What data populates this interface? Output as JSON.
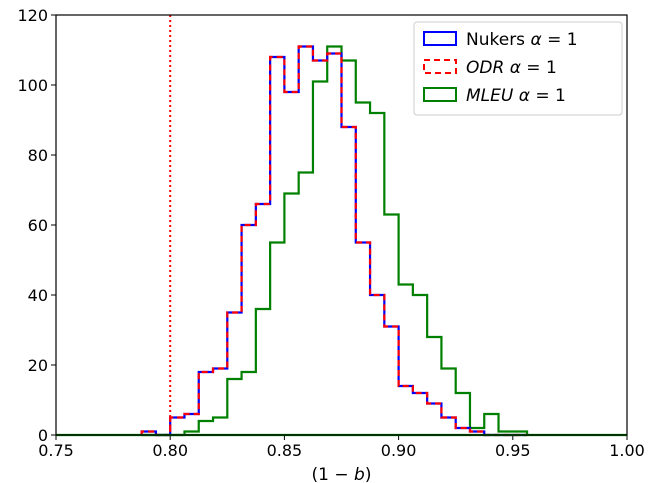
{
  "chart_data": {
    "type": "histogram-step",
    "xlabel": "(1 − b)",
    "ylabel": "",
    "xlim": [
      0.75,
      1.0
    ],
    "ylim": [
      0,
      120
    ],
    "x_ticks": [
      "0.75",
      "0.80",
      "0.85",
      "0.90",
      "0.95",
      "1.00"
    ],
    "y_ticks": [
      "0",
      "20",
      "40",
      "60",
      "80",
      "100",
      "120"
    ],
    "grid": false,
    "legend_placement": "top-right",
    "reference_line": {
      "x": 0.8,
      "style": "dotted",
      "color": "#ff0000"
    },
    "bin_edges": [
      0.7875,
      0.79375,
      0.8,
      0.80625,
      0.8125,
      0.81875,
      0.825,
      0.83125,
      0.8375,
      0.84375,
      0.85,
      0.85625,
      0.8625,
      0.86875,
      0.875,
      0.88125,
      0.8875,
      0.89375,
      0.9,
      0.90625,
      0.9125,
      0.91875,
      0.925,
      0.93125,
      0.9375,
      0.94375,
      0.95,
      0.95625
    ],
    "series": [
      {
        "name": "Nukers",
        "legend_label": "Nukers  α = 1",
        "color": "#0000ff",
        "dash": "solid",
        "values": [
          1,
          0,
          5,
          6,
          18,
          19,
          35,
          60,
          66,
          108,
          98,
          111,
          107,
          109,
          88,
          55,
          40,
          31,
          14,
          12,
          9,
          5,
          2,
          1,
          0,
          0,
          0
        ]
      },
      {
        "name": "ODR",
        "legend_label": "ODR α = 1",
        "color": "#ff0000",
        "dash": "dashed",
        "values": [
          1,
          0,
          5,
          6,
          18,
          19,
          35,
          60,
          66,
          108,
          98,
          111,
          107,
          109,
          88,
          55,
          40,
          31,
          14,
          12,
          9,
          5,
          2,
          1,
          0,
          0,
          0
        ]
      },
      {
        "name": "MLEU",
        "legend_label": "MLEU α = 1",
        "color": "#008000",
        "dash": "solid",
        "values": [
          0,
          0,
          0,
          1,
          4,
          5,
          16,
          18,
          36,
          55,
          69,
          75,
          101,
          111,
          107,
          95,
          92,
          63,
          43,
          40,
          28,
          19,
          12,
          2,
          6,
          1,
          1
        ]
      }
    ]
  }
}
